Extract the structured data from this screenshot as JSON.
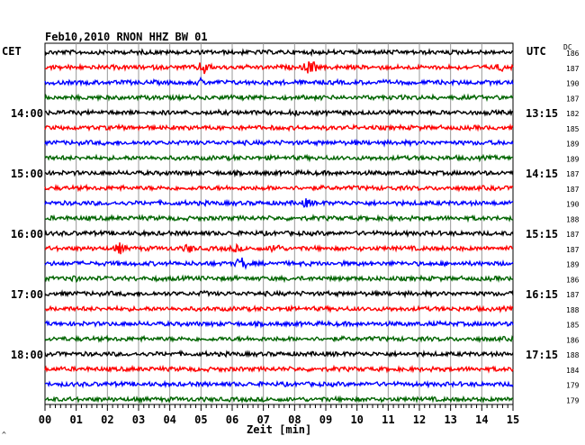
{
  "header": {
    "title": "Feb10,2010   RNON HHZ BW 01",
    "left_zone": "CET",
    "right_zone": "UTC",
    "dc_label": "DC",
    "corner_mark": "^"
  },
  "chart_data": {
    "type": "line",
    "xlabel": "Zeit [min]",
    "xlim": [
      0,
      15
    ],
    "x_ticks": [
      "00",
      "01",
      "02",
      "03",
      "04",
      "05",
      "06",
      "07",
      "08",
      "09",
      "10",
      "11",
      "12",
      "13",
      "14",
      "15"
    ],
    "line_colors": [
      "#000000",
      "#ff0000",
      "#0000ff",
      "#006400"
    ],
    "left_time_labels": [
      {
        "trace": 4,
        "label": "14:00"
      },
      {
        "trace": 8,
        "label": "15:00"
      },
      {
        "trace": 12,
        "label": "16:00"
      },
      {
        "trace": 16,
        "label": "17:00"
      },
      {
        "trace": 20,
        "label": "18:00"
      }
    ],
    "right_time_labels": [
      {
        "trace": 4,
        "label": "13:15"
      },
      {
        "trace": 8,
        "label": "14:15"
      },
      {
        "trace": 12,
        "label": "15:15"
      },
      {
        "trace": 16,
        "label": "16:15"
      },
      {
        "trace": 20,
        "label": "17:15"
      }
    ],
    "dc_values": [
      "186",
      "187",
      "190",
      "187",
      "182",
      "185",
      "189",
      "189",
      "187",
      "187",
      "190",
      "188",
      "187",
      "187",
      "189",
      "186",
      "187",
      "188",
      "185",
      "186",
      "188",
      "184",
      "179",
      "179"
    ],
    "events": [
      {
        "trace": 1,
        "minute": 5.1,
        "amplitude": 9
      },
      {
        "trace": 1,
        "minute": 8.5,
        "amplitude": 10
      },
      {
        "trace": 1,
        "minute": 14.6,
        "amplitude": 5
      },
      {
        "trace": 2,
        "minute": 5.0,
        "amplitude": 5
      },
      {
        "trace": 4,
        "minute": 8.0,
        "amplitude": 4
      },
      {
        "trace": 10,
        "minute": 8.4,
        "amplitude": 6
      },
      {
        "trace": 13,
        "minute": 2.4,
        "amplitude": 7
      },
      {
        "trace": 13,
        "minute": 4.6,
        "amplitude": 6
      },
      {
        "trace": 13,
        "minute": 6.1,
        "amplitude": 5
      },
      {
        "trace": 13,
        "minute": 7.4,
        "amplitude": 7
      },
      {
        "trace": 14,
        "minute": 6.3,
        "amplitude": 8
      },
      {
        "trace": 15,
        "minute": 0.9,
        "amplitude": 5
      },
      {
        "trace": 16,
        "minute": 5.1,
        "amplitude": 4
      }
    ]
  }
}
